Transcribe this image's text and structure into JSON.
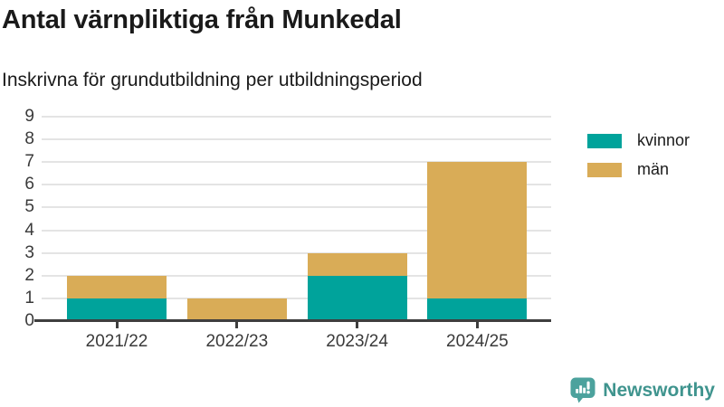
{
  "chart_data": {
    "type": "bar",
    "stacked": true,
    "title": "Antal värnpliktiga från Munkedal",
    "subtitle": "Inskrivna för grundutbildning per utbildningsperiod",
    "categories": [
      "2021/22",
      "2022/23",
      "2023/24",
      "2024/25"
    ],
    "series": [
      {
        "name": "kvinnor",
        "color": "#00a39b",
        "values": [
          1,
          0,
          2,
          1
        ]
      },
      {
        "name": "män",
        "color": "#d9ac57",
        "values": [
          1,
          1,
          1,
          6
        ]
      }
    ],
    "xlabel": "",
    "ylabel": "",
    "ylim": [
      0,
      9
    ],
    "yticks": [
      0,
      1,
      2,
      3,
      4,
      5,
      6,
      7,
      8,
      9
    ],
    "grid": true,
    "legend_position": "right-top"
  },
  "branding": {
    "logo_text": "Newsworthy",
    "logo_color": "#3f948e",
    "icon_color": "#4ca29d"
  },
  "style": {
    "background": "#ffffff",
    "text_color": "#1a1a1a",
    "tick_label_color": "#3a3a3a",
    "axis_color": "#3e3e3e",
    "gridline_color": "#e4e4e4"
  }
}
